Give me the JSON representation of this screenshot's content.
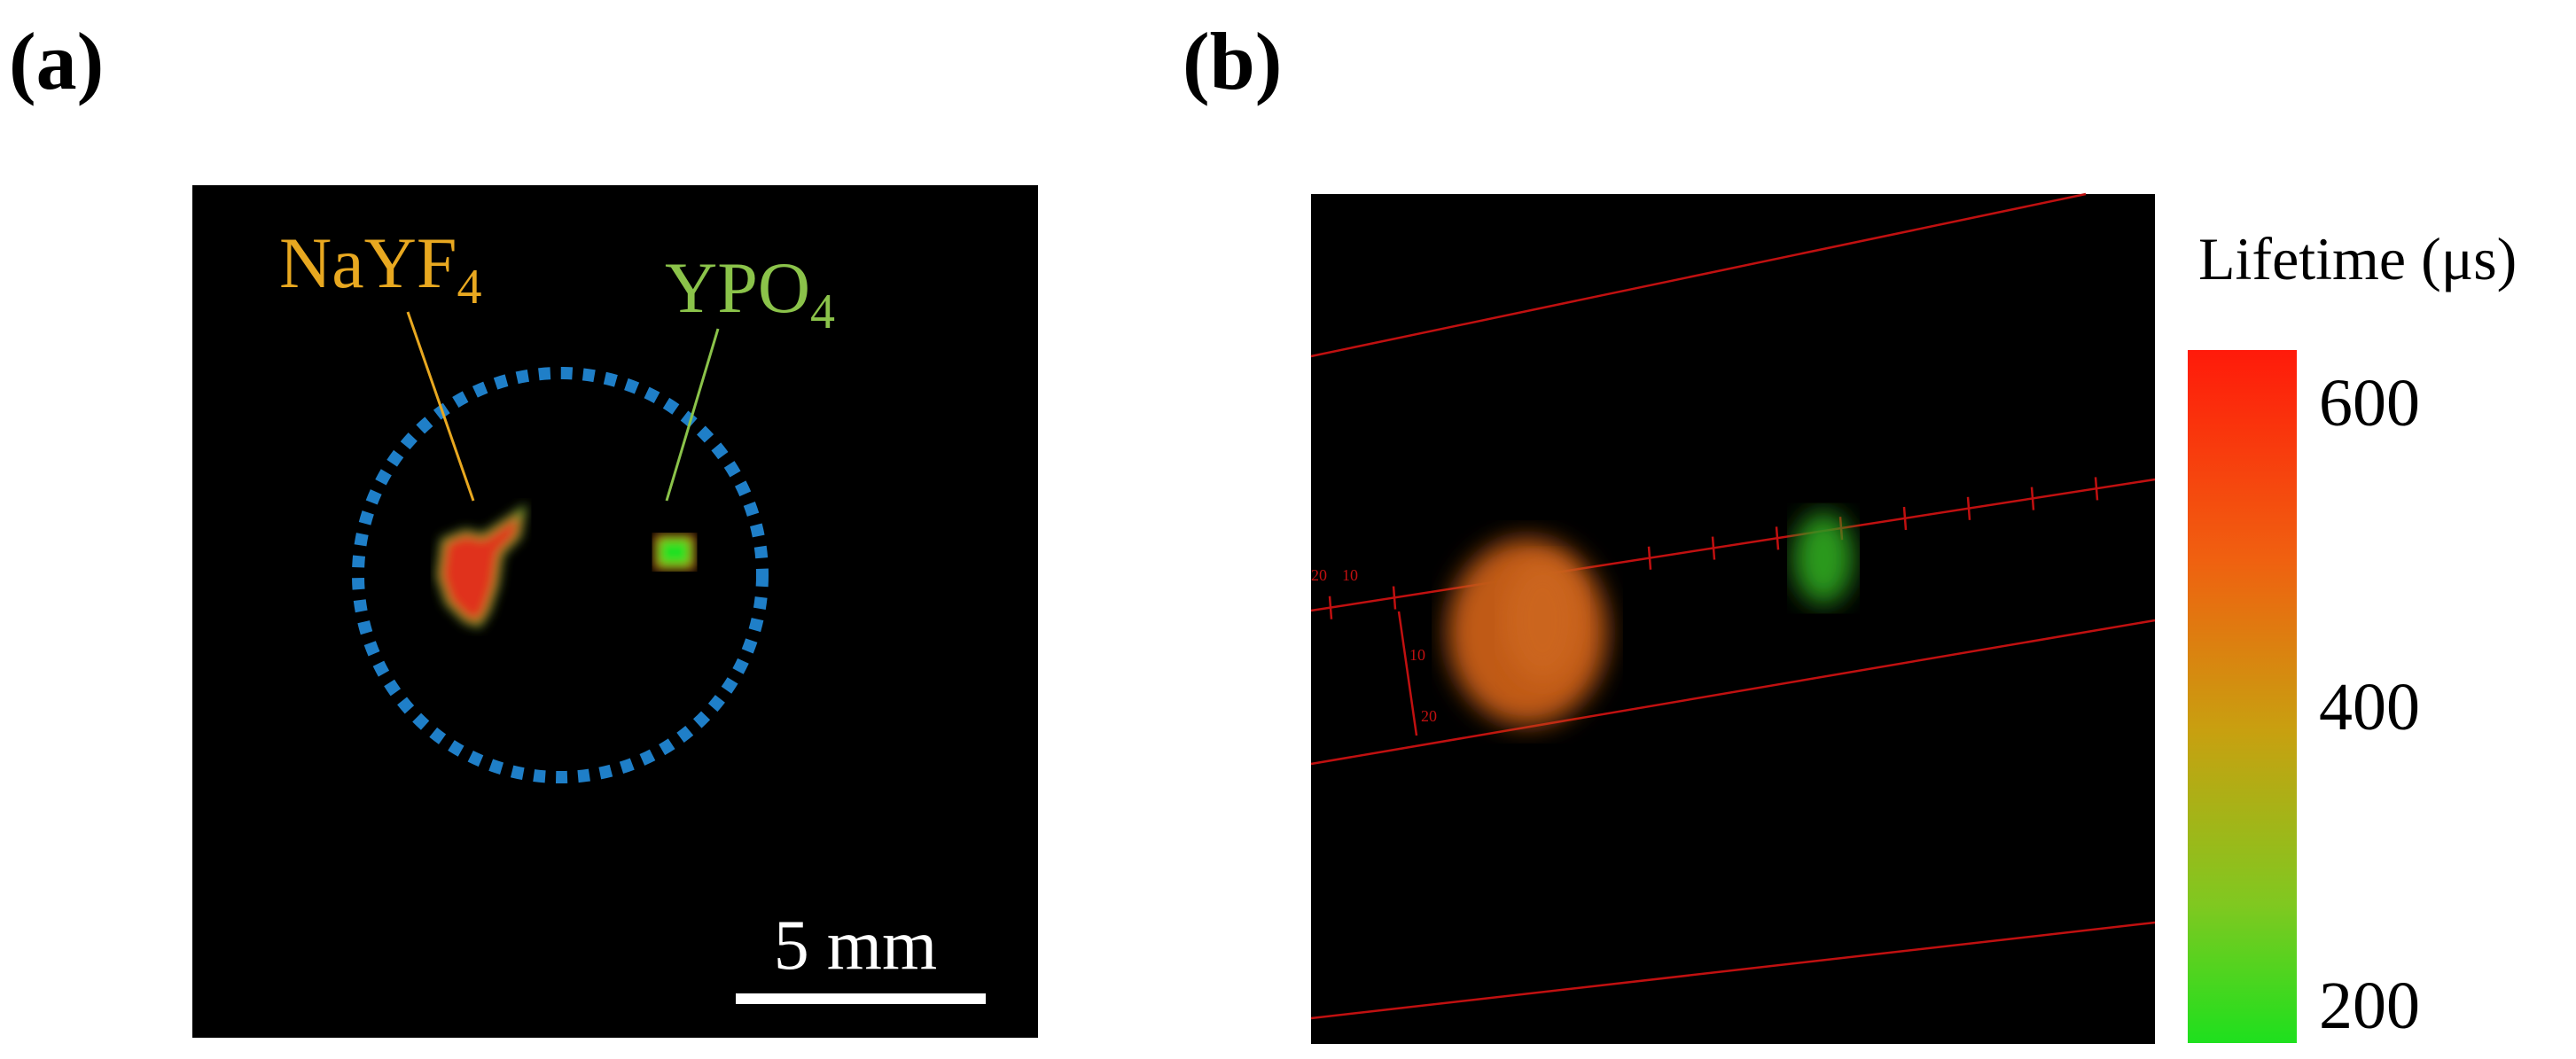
{
  "panels": [
    {
      "label": "(a)",
      "annotations": [
        {
          "base": "NaYF",
          "sub": "4"
        },
        {
          "base": "YPO",
          "sub": "4"
        }
      ],
      "scale_bar": "5 mm"
    },
    {
      "label": "(b)",
      "axis_labels": [
        "20",
        "10",
        "10",
        "20"
      ],
      "colorbar": {
        "title": "Lifetime (μs)",
        "ticks": [
          600,
          400,
          200
        ]
      }
    }
  ]
}
